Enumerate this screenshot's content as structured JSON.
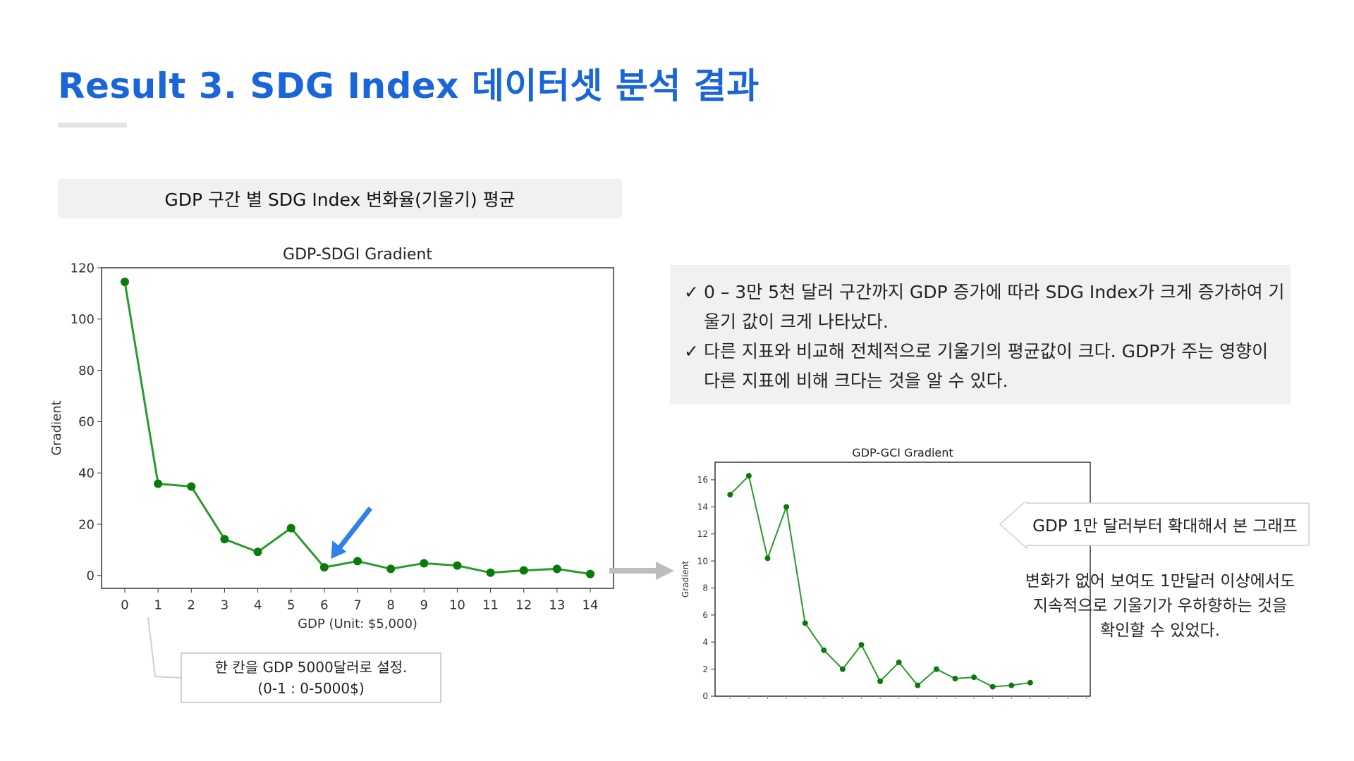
{
  "page": {
    "title": "Result 3. SDG Index 데이터셋 분석 결과",
    "section_header": "GDP 구간 별 SDG Index 변화율(기울기) 평균",
    "bullets": [
      "0 – 3만 5천 달러 구간까지 GDP 증가에 따라 SDG Index가 크게 증가하여 기울기 값이 크게 나타났다.",
      "다른 지표와 비교해 전체적으로 기울기의 평균값이 크다. GDP가 주는 영향이 다른 지표에 비해 크다는 것을 알 수 있다."
    ],
    "check_mark": "✓",
    "callout": [
      "한 칸을 GDP 5000달러로 설정.",
      "(0-1 : 0-5000$)"
    ],
    "zoom_label": "GDP 1만 달러부터 확대해서 본 그래프",
    "note": [
      "변화가 없어 보여도 1만달러 이상에서도",
      "지속적으로 기울기가 우하향하는 것을",
      "확인할 수 있었다."
    ],
    "colors": {
      "title": "#1a66d8",
      "line": "#2a9a2a",
      "marker": "#0a7a0a",
      "arrow": "#2f80e8",
      "connector_arrow": "#bdbdbd"
    }
  },
  "chart_data": [
    {
      "type": "line",
      "title": "GDP-SDGI Gradient",
      "xlabel": "GDP (Unit: $5,000)",
      "ylabel": "Gradient",
      "x": [
        0,
        1,
        2,
        3,
        4,
        5,
        6,
        7,
        8,
        9,
        10,
        11,
        12,
        13,
        14
      ],
      "values": [
        114.5,
        35.8,
        34.7,
        14.2,
        9.2,
        18.5,
        3.2,
        5.6,
        2.6,
        4.8,
        3.9,
        1.1,
        2.0,
        2.6,
        0.6
      ],
      "ylim": [
        -5,
        120
      ],
      "yticks": [
        0,
        20,
        40,
        60,
        80,
        100,
        120
      ],
      "xticks": [
        0,
        1,
        2,
        3,
        4,
        5,
        6,
        7,
        8,
        9,
        10,
        11,
        12,
        13,
        14
      ],
      "xlim": [
        -0.7,
        14.7
      ],
      "grid": false
    },
    {
      "type": "line",
      "title": "GDP-GCI Gradient",
      "xlabel": "",
      "ylabel": "Gradient",
      "x": [
        0,
        1,
        2,
        3,
        4,
        5,
        6,
        7,
        8,
        9,
        10,
        11,
        12,
        13,
        14,
        15,
        16
      ],
      "values": [
        14.9,
        16.3,
        10.2,
        14.0,
        5.4,
        3.4,
        2.0,
        3.8,
        1.1,
        2.5,
        0.8,
        2.0,
        1.3,
        1.4,
        0.7,
        0.8,
        1.0
      ],
      "ylim": [
        0,
        17.3
      ],
      "yticks": [
        0,
        2,
        4,
        6,
        8,
        10,
        12,
        14,
        16
      ],
      "xlim": [
        -0.8,
        19.2
      ],
      "grid": false
    }
  ]
}
